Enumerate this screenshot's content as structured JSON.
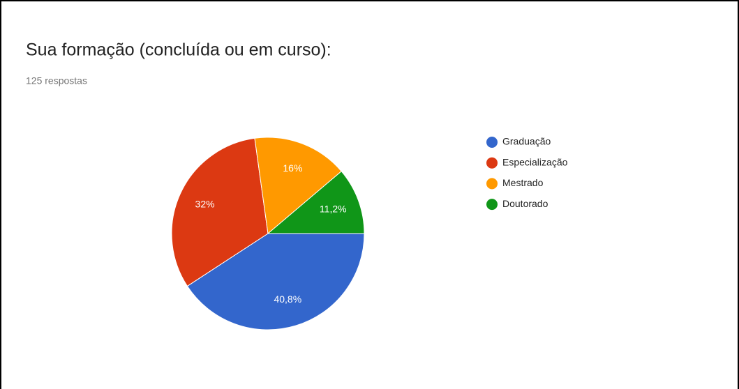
{
  "chart_data": {
    "type": "pie",
    "title": "Sua formação (concluída ou em curso):",
    "subtitle": "125 respostas",
    "categories": [
      "Graduação",
      "Especialização",
      "Mestrado",
      "Doutorado"
    ],
    "values": [
      40.8,
      32,
      16,
      11.2
    ],
    "value_labels": [
      "40,8%",
      "32%",
      "16%",
      "11,2%"
    ],
    "colors": [
      "#3366cc",
      "#dc3912",
      "#ff9900",
      "#109618"
    ],
    "legend": "right"
  }
}
